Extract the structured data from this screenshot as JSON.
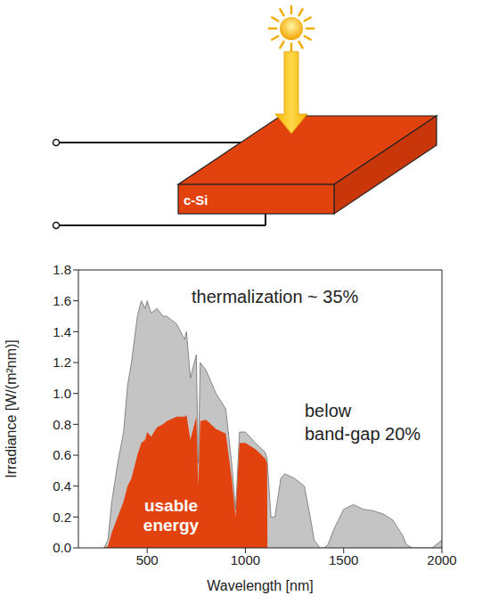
{
  "diagram": {
    "label": "c-Si"
  },
  "chart_data": {
    "type": "area",
    "x_label": "Wavelength [nm]",
    "y_label": "Irradiance [W/(m²nm)]",
    "annotations": [
      "thermalization ~ 35%",
      "below band-gap 20%"
    ],
    "x": [
      280,
      300,
      320,
      350,
      380,
      400,
      420,
      450,
      470,
      490,
      500,
      520,
      550,
      580,
      600,
      650,
      690,
      700,
      720,
      750,
      760,
      770,
      800,
      850,
      900,
      930,
      950,
      970,
      1000,
      1050,
      1100,
      1110,
      1112,
      1130,
      1150,
      1180,
      1200,
      1250,
      1300,
      1330,
      1350,
      1380,
      1400,
      1420,
      1450,
      1500,
      1550,
      1600,
      1650,
      1700,
      1750,
      1800,
      1820,
      1850,
      1950,
      2000
    ],
    "series": [
      {
        "color": "#c4c4c4",
        "values": [
          0,
          0.05,
          0.3,
          0.55,
          0.75,
          1.05,
          1.2,
          1.5,
          1.6,
          1.55,
          1.6,
          1.52,
          1.55,
          1.5,
          1.5,
          1.45,
          1.35,
          1.4,
          1.1,
          1.25,
          0.55,
          1.2,
          1.15,
          1.0,
          0.9,
          0.55,
          0.25,
          0.75,
          0.75,
          0.68,
          0.62,
          0.58,
          0.55,
          0.2,
          0.2,
          0.45,
          0.48,
          0.45,
          0.4,
          0.2,
          0.05,
          0,
          0,
          0.02,
          0.12,
          0.25,
          0.28,
          0.25,
          0.24,
          0.22,
          0.18,
          0.08,
          0.02,
          0,
          0,
          0.05
        ]
      },
      {
        "name": "usable energy",
        "color": "#e2420d",
        "values": [
          0,
          0.01,
          0.1,
          0.2,
          0.3,
          0.4,
          0.45,
          0.6,
          0.68,
          0.7,
          0.75,
          0.72,
          0.78,
          0.8,
          0.82,
          0.85,
          0.85,
          0.86,
          0.7,
          0.85,
          0.4,
          0.82,
          0.83,
          0.77,
          0.74,
          0.45,
          0.2,
          0.68,
          0.68,
          0.64,
          0.58,
          0.55,
          0,
          0,
          0,
          0,
          0,
          0,
          0,
          0,
          0,
          0,
          0,
          0,
          0,
          0,
          0,
          0,
          0,
          0,
          0,
          0,
          0,
          0,
          0,
          0
        ]
      }
    ],
    "xlim": [
      150,
      2000
    ],
    "xticks": [
      500,
      1000,
      1500,
      2000
    ],
    "ylim": [
      0,
      1.8
    ],
    "yticks": [
      {
        "value": 0,
        "label": "0.0"
      },
      0.2,
      0.4,
      0.6,
      0.8,
      {
        "value": 1,
        "label": "1.0"
      },
      1.2,
      1.4,
      1.6,
      1.8
    ],
    "grid": false
  }
}
